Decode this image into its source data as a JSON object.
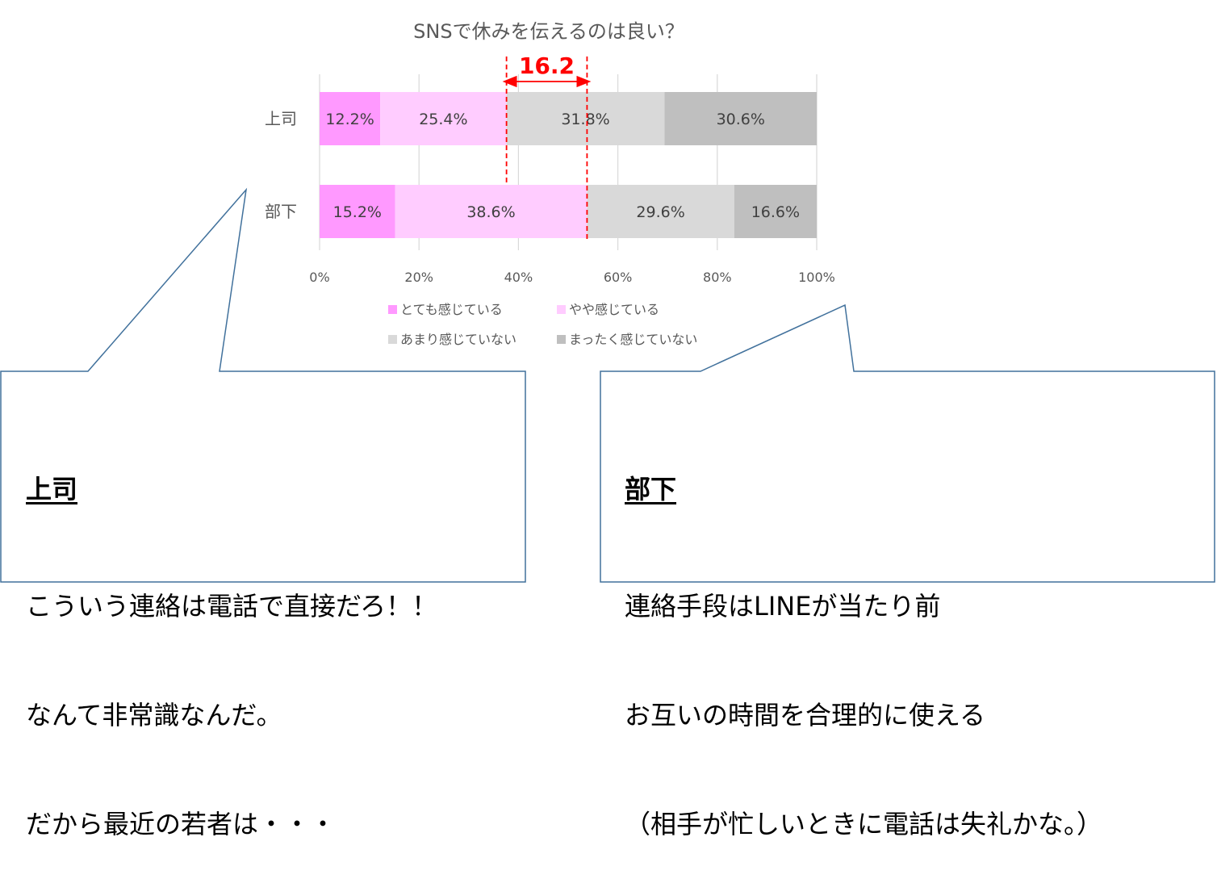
{
  "chart_data": {
    "type": "bar",
    "orientation": "horizontal",
    "stacked": "percent",
    "title": "SNSで休みを伝えるのは良い？",
    "categories": [
      "上司",
      "部下"
    ],
    "series": [
      {
        "name": "とても感じている",
        "values": [
          12.2,
          15.2
        ],
        "labels": [
          "12.2%",
          "15.2%"
        ],
        "color": "#ff99ff"
      },
      {
        "name": "やや感じている",
        "values": [
          25.4,
          38.6
        ],
        "labels": [
          "25.4%",
          "38.6%"
        ],
        "color": "#ffccff"
      },
      {
        "name": "あまり感じていない",
        "values": [
          31.8,
          29.6
        ],
        "labels": [
          "31.8%",
          "29.6%"
        ],
        "color": "#d9d9d9"
      },
      {
        "name": "まったく感じていない",
        "values": [
          30.6,
          16.6
        ],
        "labels": [
          "30.6%",
          "16.6%"
        ],
        "color": "#bfbfbf"
      }
    ],
    "xlim": [
      0,
      100
    ],
    "xticks": [
      "0%",
      "20%",
      "40%",
      "60%",
      "80%",
      "100%"
    ],
    "grid": true,
    "legend": "bottom",
    "annotation": {
      "text": "16.2",
      "from": 37.6,
      "to": 53.8,
      "color": "#ff0000"
    }
  },
  "callouts": {
    "boss": {
      "title": "上司",
      "lines": [
        "こういう連絡は電話で直接だろ！！",
        "なんて非常識なんだ。",
        "だから最近の若者は・・・"
      ]
    },
    "subordinate": {
      "title": "部下",
      "lines": [
        "連絡手段はLINEが当たり前",
        "お互いの時間を合理的に使える",
        "（相手が忙しいときに電話は失礼かな。）"
      ]
    }
  },
  "colors": {
    "callout_border": "#41719c",
    "annotation": "#ff0000"
  }
}
